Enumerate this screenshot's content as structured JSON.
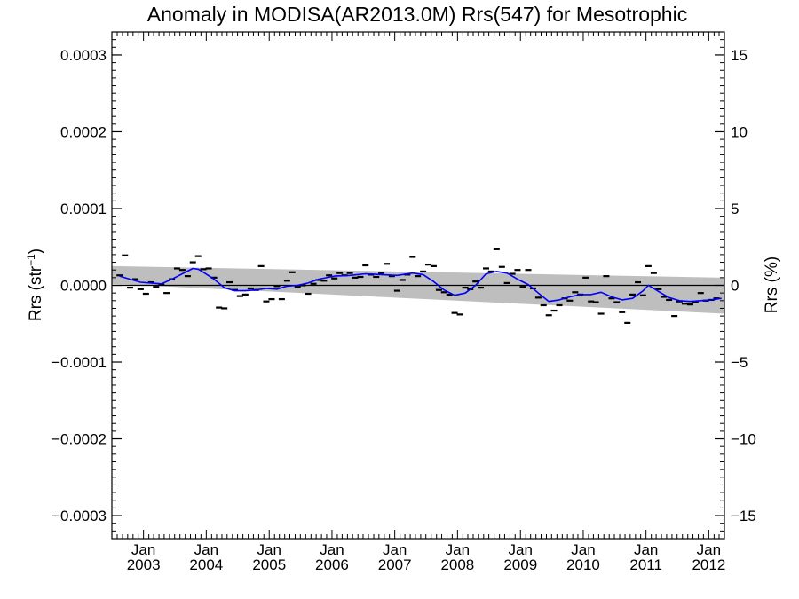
{
  "chart_data": {
    "type": "line",
    "title": "Anomaly in MODISA(AR2013.0M) Rrs(547) for Mesotrophic",
    "ylabel_left": "Rrs (str⁻¹)",
    "ylabel_right": "Rrs (%)",
    "ylim_left": [
      -0.00033,
      0.00033
    ],
    "ylim_right": [
      -16.5,
      16.5
    ],
    "yticks_left": [
      {
        "value": 0.0003,
        "label": "0.0003"
      },
      {
        "value": 0.0002,
        "label": "0.0002"
      },
      {
        "value": 0.0001,
        "label": "0.0001"
      },
      {
        "value": 0.0,
        "label": "0.0000"
      },
      {
        "value": -0.0001,
        "label": "−0.0001"
      },
      {
        "value": -0.0002,
        "label": "−0.0002"
      },
      {
        "value": -0.0003,
        "label": "−0.0003"
      }
    ],
    "yticks_right": [
      {
        "value": 15,
        "label": "15"
      },
      {
        "value": 10,
        "label": "10"
      },
      {
        "value": 5,
        "label": "5"
      },
      {
        "value": 0,
        "label": "0"
      },
      {
        "value": -5,
        "label": "−5"
      },
      {
        "value": -10,
        "label": "−10"
      },
      {
        "value": -15,
        "label": "−15"
      }
    ],
    "xlim": [
      "2002-07-01",
      "2012-04-01"
    ],
    "xticks": [
      {
        "date": "2003-01-01",
        "line1": "Jan",
        "line2": "2003"
      },
      {
        "date": "2004-01-01",
        "line1": "Jan",
        "line2": "2004"
      },
      {
        "date": "2005-01-01",
        "line1": "Jan",
        "line2": "2005"
      },
      {
        "date": "2006-01-01",
        "line1": "Jan",
        "line2": "2006"
      },
      {
        "date": "2007-01-01",
        "line1": "Jan",
        "line2": "2007"
      },
      {
        "date": "2008-01-01",
        "line1": "Jan",
        "line2": "2008"
      },
      {
        "date": "2009-01-01",
        "line1": "Jan",
        "line2": "2009"
      },
      {
        "date": "2010-01-01",
        "line1": "Jan",
        "line2": "2010"
      },
      {
        "date": "2011-01-01",
        "line1": "Jan",
        "line2": "2011"
      },
      {
        "date": "2012-01-01",
        "line1": "Jan",
        "line2": "2012"
      }
    ],
    "monthly_anomaly": [
      {
        "x": "2002-08",
        "y": 1.3e-05
      },
      {
        "x": "2002-09",
        "y": 3.9e-05
      },
      {
        "x": "2002-10",
        "y": -3e-06
      },
      {
        "x": "2002-11",
        "y": 8e-06
      },
      {
        "x": "2002-12",
        "y": -5e-06
      },
      {
        "x": "2003-01",
        "y": -1.1e-05
      },
      {
        "x": "2003-02",
        "y": 4e-06
      },
      {
        "x": "2003-03",
        "y": -2e-06
      },
      {
        "x": "2003-04",
        "y": 1e-06
      },
      {
        "x": "2003-05",
        "y": -1e-05
      },
      {
        "x": "2003-06",
        "y": 8e-06
      },
      {
        "x": "2003-07",
        "y": 2.2e-05
      },
      {
        "x": "2003-08",
        "y": 2e-05
      },
      {
        "x": "2003-09",
        "y": 1.2e-05
      },
      {
        "x": "2003-10",
        "y": 3e-05
      },
      {
        "x": "2003-11",
        "y": 3.8e-05
      },
      {
        "x": "2003-12",
        "y": 2.1e-05
      },
      {
        "x": "2004-01",
        "y": 2.2e-05
      },
      {
        "x": "2004-02",
        "y": 1e-05
      },
      {
        "x": "2004-03",
        "y": -2.9e-05
      },
      {
        "x": "2004-04",
        "y": -3e-05
      },
      {
        "x": "2004-05",
        "y": 4e-06
      },
      {
        "x": "2004-06",
        "y": -6e-06
      },
      {
        "x": "2004-07",
        "y": -1.4e-05
      },
      {
        "x": "2004-08",
        "y": -1.2e-05
      },
      {
        "x": "2004-09",
        "y": -4e-06
      },
      {
        "x": "2004-10",
        "y": -6e-06
      },
      {
        "x": "2004-11",
        "y": 2.5e-05
      },
      {
        "x": "2004-12",
        "y": -2.1e-05
      },
      {
        "x": "2005-01",
        "y": -1.8e-05
      },
      {
        "x": "2005-02",
        "y": -1e-06
      },
      {
        "x": "2005-03",
        "y": -1.8e-05
      },
      {
        "x": "2005-04",
        "y": 6e-06
      },
      {
        "x": "2005-05",
        "y": 1.7e-05
      },
      {
        "x": "2005-06",
        "y": -2e-06
      },
      {
        "x": "2005-07",
        "y": 0.0
      },
      {
        "x": "2005-08",
        "y": -1.1e-05
      },
      {
        "x": "2005-09",
        "y": 2e-06
      },
      {
        "x": "2005-10",
        "y": 7e-06
      },
      {
        "x": "2005-11",
        "y": 6e-06
      },
      {
        "x": "2005-12",
        "y": 1.3e-05
      },
      {
        "x": "2006-01",
        "y": 9e-06
      },
      {
        "x": "2006-02",
        "y": 1.6e-05
      },
      {
        "x": "2006-03",
        "y": 1.3e-05
      },
      {
        "x": "2006-04",
        "y": 1.6e-05
      },
      {
        "x": "2006-05",
        "y": 1e-05
      },
      {
        "x": "2006-06",
        "y": 1.1e-05
      },
      {
        "x": "2006-07",
        "y": 2.6e-05
      },
      {
        "x": "2006-08",
        "y": 1.4e-05
      },
      {
        "x": "2006-09",
        "y": 1.1e-05
      },
      {
        "x": "2006-10",
        "y": 1.6e-05
      },
      {
        "x": "2006-11",
        "y": 2.8e-05
      },
      {
        "x": "2006-12",
        "y": 1.2e-05
      },
      {
        "x": "2007-01",
        "y": -7e-06
      },
      {
        "x": "2007-02",
        "y": 7e-06
      },
      {
        "x": "2007-03",
        "y": 1.4e-05
      },
      {
        "x": "2007-04",
        "y": 3.7e-05
      },
      {
        "x": "2007-05",
        "y": 1.2e-05
      },
      {
        "x": "2007-06",
        "y": 1.8e-05
      },
      {
        "x": "2007-07",
        "y": 2.7e-05
      },
      {
        "x": "2007-08",
        "y": 2.5e-05
      },
      {
        "x": "2007-09",
        "y": -6e-06
      },
      {
        "x": "2007-10",
        "y": -9e-06
      },
      {
        "x": "2007-11",
        "y": -1.2e-05
      },
      {
        "x": "2007-12",
        "y": -3.6e-05
      },
      {
        "x": "2008-01",
        "y": -3.8e-05
      },
      {
        "x": "2008-02",
        "y": -3e-06
      },
      {
        "x": "2008-03",
        "y": -5e-06
      },
      {
        "x": "2008-04",
        "y": 5e-06
      },
      {
        "x": "2008-05",
        "y": -3e-06
      },
      {
        "x": "2008-06",
        "y": 2.2e-05
      },
      {
        "x": "2008-07",
        "y": 1.8e-05
      },
      {
        "x": "2008-08",
        "y": 4.7e-05
      },
      {
        "x": "2008-09",
        "y": 2.4e-05
      },
      {
        "x": "2008-10",
        "y": 3e-06
      },
      {
        "x": "2008-11",
        "y": 1.5e-05
      },
      {
        "x": "2008-12",
        "y": 2e-05
      },
      {
        "x": "2009-01",
        "y": -2e-06
      },
      {
        "x": "2009-02",
        "y": 2e-05
      },
      {
        "x": "2009-03",
        "y": -4e-06
      },
      {
        "x": "2009-04",
        "y": -1.6e-05
      },
      {
        "x": "2009-05",
        "y": -2.6e-05
      },
      {
        "x": "2009-06",
        "y": -3.9e-05
      },
      {
        "x": "2009-07",
        "y": -3.3e-05
      },
      {
        "x": "2009-08",
        "y": -2.6e-05
      },
      {
        "x": "2009-09",
        "y": -1.7e-05
      },
      {
        "x": "2009-10",
        "y": -2e-05
      },
      {
        "x": "2009-11",
        "y": -9e-06
      },
      {
        "x": "2009-12",
        "y": -1.2e-05
      },
      {
        "x": "2010-01",
        "y": 1e-05
      },
      {
        "x": "2010-02",
        "y": -2.1e-05
      },
      {
        "x": "2010-03",
        "y": -2.2e-05
      },
      {
        "x": "2010-04",
        "y": -3.7e-05
      },
      {
        "x": "2010-05",
        "y": 1.2e-05
      },
      {
        "x": "2010-06",
        "y": -1.7e-05
      },
      {
        "x": "2010-07",
        "y": -2.2e-05
      },
      {
        "x": "2010-08",
        "y": -3.5e-05
      },
      {
        "x": "2010-09",
        "y": -4.9e-05
      },
      {
        "x": "2010-10",
        "y": -1.2e-05
      },
      {
        "x": "2010-11",
        "y": 4e-06
      },
      {
        "x": "2010-12",
        "y": -1.3e-05
      },
      {
        "x": "2011-01",
        "y": 2.5e-05
      },
      {
        "x": "2011-02",
        "y": 1.6e-05
      },
      {
        "x": "2011-03",
        "y": -5e-06
      },
      {
        "x": "2011-04",
        "y": -1.5e-05
      },
      {
        "x": "2011-05",
        "y": -1.9e-05
      },
      {
        "x": "2011-06",
        "y": -4e-05
      },
      {
        "x": "2011-07",
        "y": -2.1e-05
      },
      {
        "x": "2011-08",
        "y": -2.4e-05
      },
      {
        "x": "2011-09",
        "y": -2.5e-05
      },
      {
        "x": "2011-10",
        "y": -2.2e-05
      },
      {
        "x": "2011-11",
        "y": -1e-05
      },
      {
        "x": "2011-12",
        "y": -2e-05
      },
      {
        "x": "2012-01",
        "y": -1.9e-05
      },
      {
        "x": "2012-02",
        "y": -1.7e-05
      }
    ],
    "smoothed_line": [
      {
        "x": "2002-08",
        "y": 1.2e-05
      },
      {
        "x": "2002-10",
        "y": 8e-06
      },
      {
        "x": "2002-12",
        "y": 4e-06
      },
      {
        "x": "2003-02",
        "y": 3e-06
      },
      {
        "x": "2003-04",
        "y": 2e-06
      },
      {
        "x": "2003-06",
        "y": 8e-06
      },
      {
        "x": "2003-08",
        "y": 1.5e-05
      },
      {
        "x": "2003-10",
        "y": 2.2e-05
      },
      {
        "x": "2003-11",
        "y": 2.1e-05
      },
      {
        "x": "2003-12",
        "y": 1.7e-05
      },
      {
        "x": "2004-02",
        "y": 8e-06
      },
      {
        "x": "2004-04",
        "y": -3e-06
      },
      {
        "x": "2004-06",
        "y": -7e-06
      },
      {
        "x": "2004-08",
        "y": -7e-06
      },
      {
        "x": "2004-10",
        "y": -6e-06
      },
      {
        "x": "2004-12",
        "y": -4e-06
      },
      {
        "x": "2005-02",
        "y": -5e-06
      },
      {
        "x": "2005-04",
        "y": -1e-06
      },
      {
        "x": "2005-06",
        "y": 0.0
      },
      {
        "x": "2005-08",
        "y": 3e-06
      },
      {
        "x": "2005-10",
        "y": 8e-06
      },
      {
        "x": "2006-01",
        "y": 1.2e-05
      },
      {
        "x": "2006-04",
        "y": 1.3e-05
      },
      {
        "x": "2006-07",
        "y": 1.5e-05
      },
      {
        "x": "2006-10",
        "y": 1.4e-05
      },
      {
        "x": "2007-01",
        "y": 1.3e-05
      },
      {
        "x": "2007-04",
        "y": 1.6e-05
      },
      {
        "x": "2007-06",
        "y": 1.4e-05
      },
      {
        "x": "2007-08",
        "y": 5e-06
      },
      {
        "x": "2007-10",
        "y": -6e-06
      },
      {
        "x": "2007-12",
        "y": -1.3e-05
      },
      {
        "x": "2008-02",
        "y": -1e-05
      },
      {
        "x": "2008-04",
        "y": 0.0
      },
      {
        "x": "2008-06",
        "y": 1.5e-05
      },
      {
        "x": "2008-08",
        "y": 1.8e-05
      },
      {
        "x": "2008-10",
        "y": 1.6e-05
      },
      {
        "x": "2008-12",
        "y": 8e-06
      },
      {
        "x": "2009-02",
        "y": 1e-06
      },
      {
        "x": "2009-04",
        "y": -1e-05
      },
      {
        "x": "2009-06",
        "y": -2.1e-05
      },
      {
        "x": "2009-08",
        "y": -1.9e-05
      },
      {
        "x": "2009-10",
        "y": -1.5e-05
      },
      {
        "x": "2009-12",
        "y": -1.2e-05
      },
      {
        "x": "2010-02",
        "y": -1.2e-05
      },
      {
        "x": "2010-04",
        "y": -9e-06
      },
      {
        "x": "2010-06",
        "y": -1.5e-05
      },
      {
        "x": "2010-08",
        "y": -1.9e-05
      },
      {
        "x": "2010-10",
        "y": -1.7e-05
      },
      {
        "x": "2010-12",
        "y": -7e-06
      },
      {
        "x": "2011-01",
        "y": 0.0
      },
      {
        "x": "2011-03",
        "y": -8e-06
      },
      {
        "x": "2011-05",
        "y": -1.6e-05
      },
      {
        "x": "2011-07",
        "y": -2e-05
      },
      {
        "x": "2011-09",
        "y": -2.1e-05
      },
      {
        "x": "2011-11",
        "y": -2e-05
      },
      {
        "x": "2012-01",
        "y": -1.9e-05
      },
      {
        "x": "2012-03",
        "y": -1.7e-05
      }
    ],
    "uncertainty_band": {
      "start": {
        "x": "2002-07-01",
        "upper": 2.5e-05,
        "lower": 2e-06
      },
      "end": {
        "x": "2012-04-01",
        "upper": 1e-05,
        "lower": -3.7e-05
      }
    },
    "zero_line": 0,
    "colors": {
      "smoothed_line": "#0000ff",
      "monthly_anomaly": "#000000",
      "band": "#bebebe",
      "zero_line": "#000000"
    },
    "grid": false
  }
}
